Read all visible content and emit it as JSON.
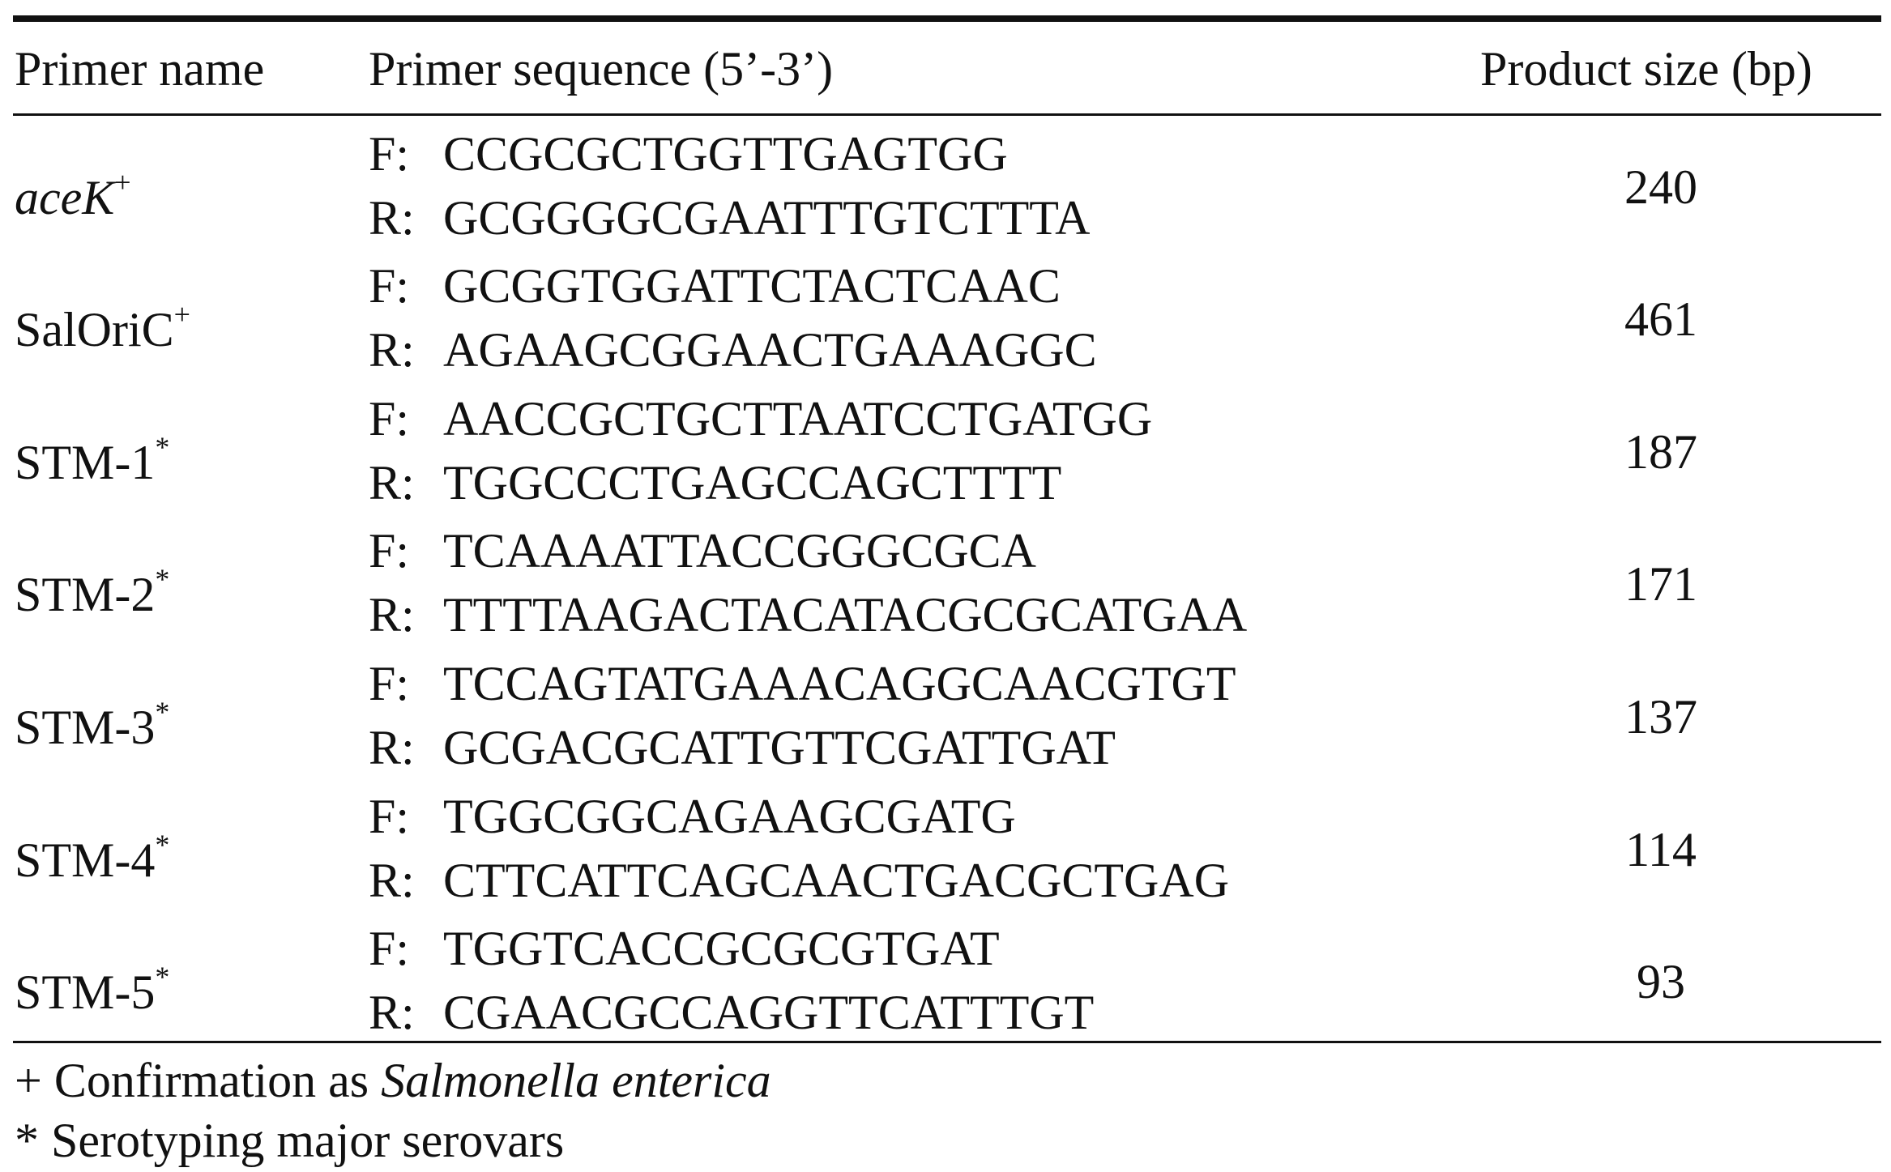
{
  "table": {
    "headers": {
      "primer_name": "Primer name",
      "primer_sequence": "Primer sequence (5’-3’)",
      "product_size": "Product size (bp)"
    },
    "rows": [
      {
        "name": "aceK",
        "name_italic": true,
        "marker": "+",
        "forward_label": "F:",
        "forward": "CCGCGCTGGTTGAGTGG",
        "reverse_label": "R:",
        "reverse": "GCGGGGCGAATTTGTCTTTA",
        "size": "240"
      },
      {
        "name": "SalOriC",
        "name_italic": false,
        "marker": "+",
        "forward_label": "F:",
        "forward": "GCGGTGGATTCTACTCAAC",
        "reverse_label": "R:",
        "reverse": "AGAAGCGGAACTGAAAGGC",
        "size": "461"
      },
      {
        "name": "STM-1",
        "name_italic": false,
        "marker": "*",
        "forward_label": "F:",
        "forward": "AACCGCTGCTTAATCCTGATGG",
        "reverse_label": "R:",
        "reverse": "TGGCCCTGAGCCAGCTTTT",
        "size": "187"
      },
      {
        "name": "STM-2",
        "name_italic": false,
        "marker": "*",
        "forward_label": "F:",
        "forward": "TCAAAATTACCGGGCGCA",
        "reverse_label": "R:",
        "reverse": "TTTTAAGACTACATACGCGCATGAA",
        "size": "171"
      },
      {
        "name": "STM-3",
        "name_italic": false,
        "marker": "*",
        "forward_label": "F:",
        "forward": "TCCAGTATGAAACAGGCAACGTGT",
        "reverse_label": "R:",
        "reverse": "GCGACGCATTGTTCGATTGAT",
        "size": "137"
      },
      {
        "name": "STM-4",
        "name_italic": false,
        "marker": "*",
        "forward_label": "F:",
        "forward": "TGGCGGCAGAAGCGATG",
        "reverse_label": "R:",
        "reverse": "CTTCATTCAGCAACTGACGCTGAG",
        "size": "114"
      },
      {
        "name": "STM-5",
        "name_italic": false,
        "marker": "*",
        "forward_label": "F:",
        "forward": "TGGTCACCGCGCGTGAT",
        "reverse_label": "R:",
        "reverse": "CGAACGCCAGGTTCATTTGT",
        "size": "93"
      }
    ]
  },
  "footnotes": {
    "plus": {
      "prefix": "+ Confirmation as ",
      "species": "Salmonella enterica"
    },
    "star": {
      "text": "* Serotyping major serovars"
    }
  }
}
